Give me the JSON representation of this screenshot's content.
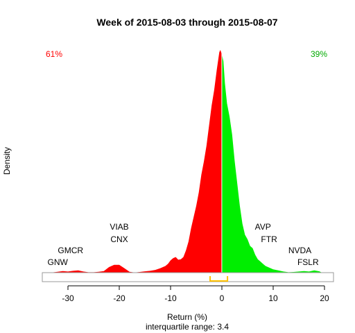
{
  "chart_data": {
    "type": "area",
    "title": "Week of 2015-08-03 through 2015-08-07",
    "xlabel": "Return (%)",
    "xlabel2": "interquartile range: 3.4",
    "ylabel": "Density",
    "xlim": [
      -36,
      22
    ],
    "ylim": [
      0,
      1
    ],
    "x_ticks": [
      -30,
      -20,
      -10,
      0,
      10,
      20
    ],
    "x_tick_labels": [
      "-30",
      "-20",
      "-10",
      "0",
      "10",
      "20"
    ],
    "negative_share_label": "61%",
    "positive_share_label": "39%",
    "negative_color": "#ff0000",
    "positive_color": "#00ee00",
    "iqr": {
      "q1": -2.3,
      "q3": 1.1,
      "color": "#ffc000"
    },
    "density": {
      "x": [
        -33.5,
        -32,
        -31,
        -30,
        -29,
        -28,
        -27,
        -26,
        -25,
        -24,
        -23,
        -22,
        -21,
        -20,
        -19,
        -18,
        -17,
        -16,
        -15,
        -14,
        -13,
        -12,
        -11,
        -10.5,
        -10,
        -9.5,
        -9,
        -8.5,
        -8,
        -7.5,
        -7,
        -6.5,
        -6,
        -5.5,
        -5,
        -4.5,
        -4,
        -3.5,
        -3,
        -2.5,
        -2,
        -1.5,
        -1,
        -0.5,
        -0.3,
        0,
        0.3,
        0.6,
        1,
        1.5,
        2,
        2.5,
        3,
        3.5,
        4,
        4.5,
        5,
        5.5,
        6,
        6.5,
        7,
        7.5,
        8,
        8.5,
        9,
        10,
        11,
        12,
        13,
        14,
        15,
        16,
        17,
        18,
        19,
        19.5
      ],
      "y": [
        0,
        0.004,
        0.007,
        0.005,
        0.008,
        0.01,
        0.005,
        0.002,
        0.002,
        0.004,
        0.007,
        0.025,
        0.035,
        0.035,
        0.02,
        0.004,
        0.001,
        0.003,
        0.006,
        0.008,
        0.012,
        0.02,
        0.03,
        0.04,
        0.055,
        0.065,
        0.07,
        0.058,
        0.06,
        0.07,
        0.1,
        0.14,
        0.2,
        0.25,
        0.3,
        0.36,
        0.44,
        0.5,
        0.57,
        0.66,
        0.75,
        0.82,
        0.91,
        0.99,
        1.0,
        0.98,
        0.95,
        0.85,
        0.76,
        0.7,
        0.62,
        0.5,
        0.4,
        0.3,
        0.22,
        0.17,
        0.15,
        0.12,
        0.11,
        0.08,
        0.06,
        0.05,
        0.04,
        0.03,
        0.025,
        0.015,
        0.01,
        0.005,
        0.002,
        0.003,
        0.005,
        0.007,
        0.005,
        0.01,
        0.006,
        0
      ]
    },
    "annotations": [
      {
        "label": "GNW",
        "x": -32,
        "level": 0
      },
      {
        "label": "GMCR",
        "x": -29.5,
        "level": 1
      },
      {
        "label": "CNX",
        "x": -20,
        "level": 2
      },
      {
        "label": "VIAB",
        "x": -20,
        "level": 3
      },
      {
        "label": "FTR",
        "x": 9.2,
        "level": 2
      },
      {
        "label": "AVP",
        "x": 8,
        "level": 3
      },
      {
        "label": "NVDA",
        "x": 15.2,
        "level": 1
      },
      {
        "label": "FSLR",
        "x": 16.8,
        "level": 0
      }
    ]
  }
}
